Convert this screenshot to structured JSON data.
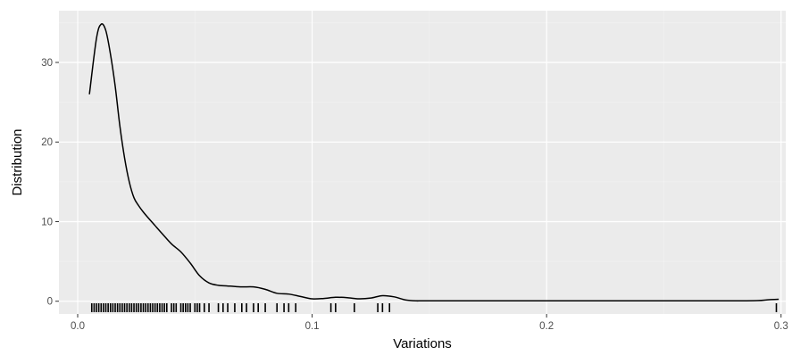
{
  "chart_data": {
    "type": "area",
    "title": "",
    "xlabel": "Variations",
    "ylabel": "Distribution",
    "xlim": [
      -0.008,
      0.302
    ],
    "ylim": [
      -1.6,
      36.5
    ],
    "x_ticks": [
      0.0,
      0.1,
      0.2,
      0.3
    ],
    "x_tick_labels": [
      "0.0",
      "0.1",
      "0.2",
      "0.3"
    ],
    "y_ticks": [
      0,
      10,
      20,
      30
    ],
    "y_tick_labels": [
      "0",
      "10",
      "20",
      "30"
    ],
    "grid": true,
    "panel_background": "#ebebeb",
    "grid_color": "#ffffff",
    "line_color": "#000000",
    "density": {
      "x": [
        0.005,
        0.008,
        0.01,
        0.012,
        0.014,
        0.016,
        0.018,
        0.02,
        0.022,
        0.024,
        0.026,
        0.028,
        0.03,
        0.033,
        0.036,
        0.04,
        0.044,
        0.048,
        0.052,
        0.056,
        0.06,
        0.065,
        0.07,
        0.075,
        0.08,
        0.085,
        0.09,
        0.095,
        0.1,
        0.105,
        0.11,
        0.115,
        0.12,
        0.125,
        0.13,
        0.135,
        0.14,
        0.145,
        0.15,
        0.2,
        0.25,
        0.28,
        0.29,
        0.295,
        0.299
      ],
      "y": [
        26,
        33,
        34.8,
        34,
        31,
        27,
        22,
        18,
        15,
        13,
        12,
        11.2,
        10.5,
        9.5,
        8.5,
        7.2,
        6.2,
        4.8,
        3.2,
        2.3,
        2.0,
        1.9,
        1.8,
        1.8,
        1.5,
        1.0,
        0.9,
        0.6,
        0.3,
        0.35,
        0.5,
        0.45,
        0.3,
        0.4,
        0.7,
        0.55,
        0.15,
        0.05,
        0.05,
        0.05,
        0.05,
        0.05,
        0.08,
        0.2,
        0.25
      ]
    },
    "rug": [
      0.006,
      0.007,
      0.008,
      0.009,
      0.01,
      0.011,
      0.012,
      0.013,
      0.014,
      0.015,
      0.016,
      0.017,
      0.018,
      0.019,
      0.02,
      0.021,
      0.022,
      0.023,
      0.024,
      0.025,
      0.026,
      0.027,
      0.028,
      0.029,
      0.03,
      0.031,
      0.032,
      0.033,
      0.034,
      0.035,
      0.036,
      0.037,
      0.038,
      0.04,
      0.041,
      0.042,
      0.044,
      0.045,
      0.046,
      0.047,
      0.048,
      0.05,
      0.051,
      0.052,
      0.054,
      0.056,
      0.06,
      0.062,
      0.064,
      0.067,
      0.07,
      0.072,
      0.075,
      0.077,
      0.08,
      0.085,
      0.088,
      0.09,
      0.093,
      0.108,
      0.11,
      0.118,
      0.128,
      0.13,
      0.133,
      0.298
    ]
  }
}
